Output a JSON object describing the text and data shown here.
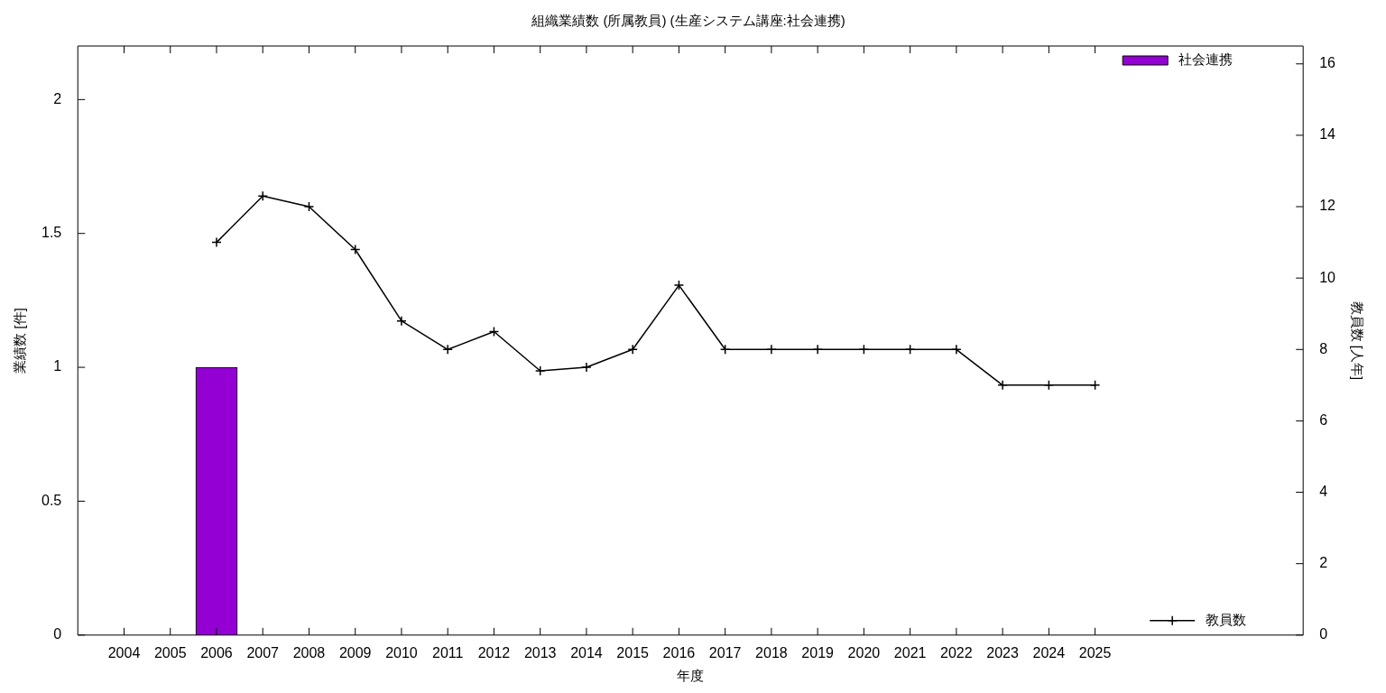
{
  "chart_data": {
    "type": "bar",
    "title": "組織業績数 (所属教員) (生産システム講座:社会連携)",
    "xlabel": "年度",
    "ylabel": "業績数 [件]",
    "y2label": "教員数 [人年]",
    "x": [
      2006,
      2007,
      2008,
      2009,
      2010,
      2011,
      2012,
      2013,
      2014,
      2015,
      2016,
      2017,
      2018,
      2019,
      2020,
      2021,
      2022,
      2023,
      2024,
      2025
    ],
    "xlim": [
      2003,
      2029.5
    ],
    "xticks": [
      2004,
      2005,
      2006,
      2007,
      2008,
      2009,
      2010,
      2011,
      2012,
      2013,
      2014,
      2015,
      2016,
      2017,
      2018,
      2019,
      2020,
      2021,
      2022,
      2023,
      2024,
      2025
    ],
    "ylim": [
      0,
      2.2
    ],
    "yticks": [
      0,
      0.5,
      1,
      1.5,
      2
    ],
    "y2lim": [
      0,
      16.5
    ],
    "y2ticks": [
      0,
      2,
      4,
      6,
      8,
      10,
      12,
      14,
      16
    ],
    "series": [
      {
        "name": "社会連携",
        "color": "#9400d3",
        "values": [
          1,
          null,
          null,
          null,
          null,
          null,
          null,
          null,
          null,
          null,
          null,
          null,
          null,
          null,
          null,
          null,
          null,
          null,
          null,
          null
        ]
      },
      {
        "name": "教員数",
        "type": "line",
        "axis": "y2",
        "color": "#000000",
        "marker": "cross",
        "values": [
          11,
          12.3,
          12,
          10.8,
          8.8,
          8,
          8.5,
          7.4,
          7.5,
          8,
          9.8,
          8,
          8,
          8,
          8,
          8,
          8,
          7,
          7,
          7
        ]
      }
    ],
    "legend": "right",
    "grid": false
  }
}
